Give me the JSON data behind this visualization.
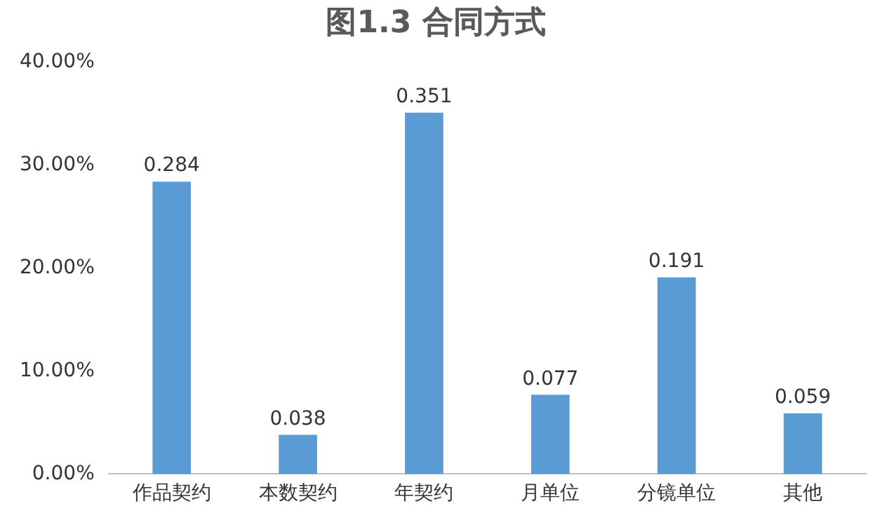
{
  "chart_data": {
    "type": "bar",
    "title": "图1.3 合同方式",
    "categories": [
      "作品契约",
      "本数契约",
      "年契约",
      "月单位",
      "分镜单位",
      "其他"
    ],
    "values": [
      0.284,
      0.038,
      0.351,
      0.077,
      0.191,
      0.059
    ],
    "color": "#5b9bd5",
    "ylim": [
      0,
      0.4
    ],
    "yticks": [
      {
        "value": 0,
        "label": "0.00%"
      },
      {
        "value": 0.1,
        "label": "10.00%"
      },
      {
        "value": 0.2,
        "label": "20.00%"
      },
      {
        "value": 0.3,
        "label": "30.00%"
      },
      {
        "value": 0.4,
        "label": "40.00%"
      }
    ],
    "grid": false,
    "legend": false,
    "data_labels": true
  }
}
